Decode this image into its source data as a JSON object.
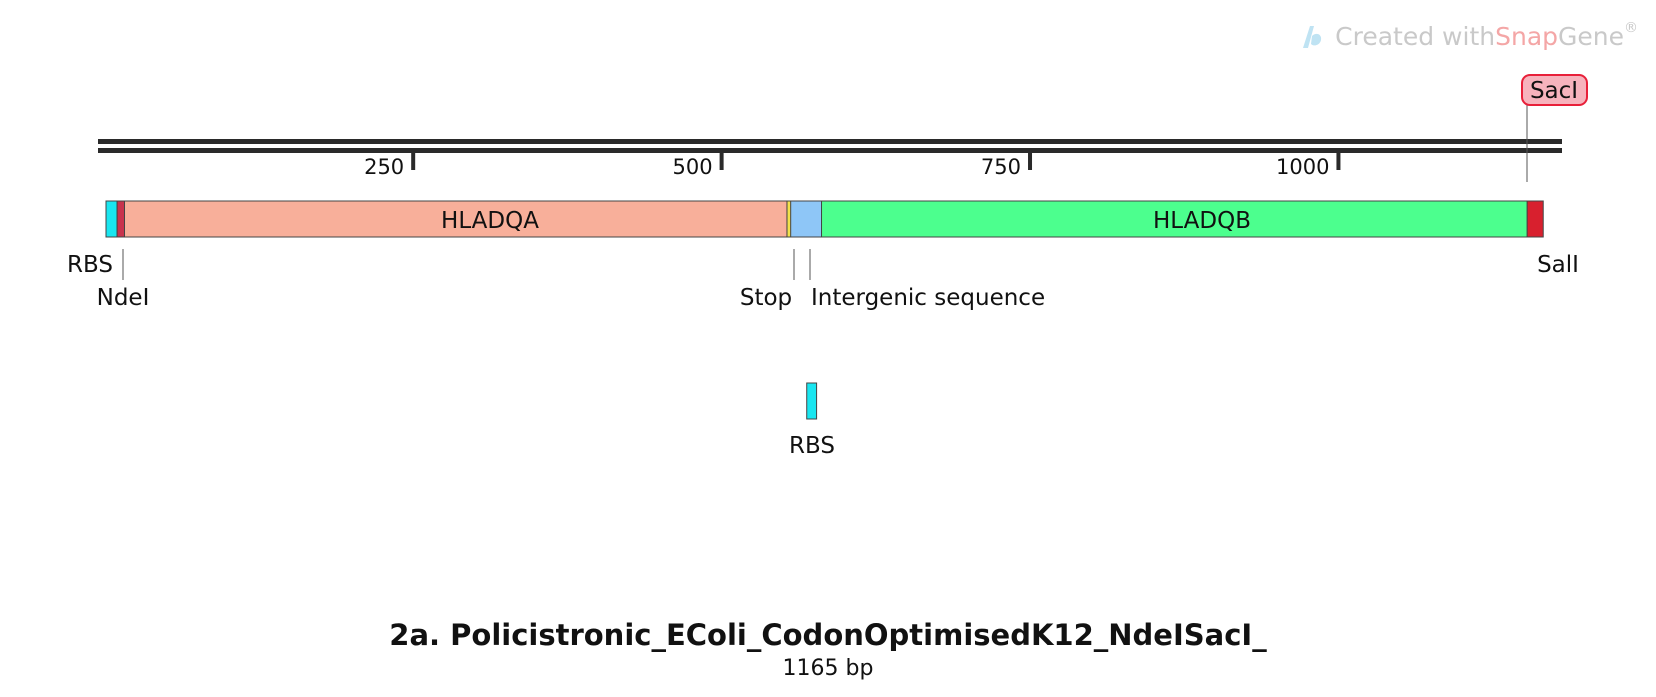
{
  "watermark": {
    "prefix": "Created with ",
    "brand_snap": "Snap",
    "brand_gene": "Gene",
    "reg": "®",
    "icon": "snapgene-logo-icon"
  },
  "map": {
    "title": "2a. Policistronic_EColi_CodonOptimisedK12_NdeISacI_",
    "length_label": "1165 bp",
    "length_bp": 1165,
    "ruler_ticks": [
      250,
      500,
      750,
      1000
    ],
    "features": [
      {
        "name": "RBS",
        "label": "RBS",
        "start": 1,
        "end": 9,
        "color": "#19e6f0",
        "track": "main"
      },
      {
        "name": "NdeI-site",
        "label": "",
        "start": 10,
        "end": 15,
        "color": "#c8334d",
        "track": "main"
      },
      {
        "name": "HLADQA",
        "label": "HLADQA",
        "start": 16,
        "end": 552,
        "color": "#f8af9a",
        "track": "main"
      },
      {
        "name": "Stop",
        "label": "",
        "start": 553,
        "end": 555,
        "color": "#f2e14b",
        "track": "main"
      },
      {
        "name": "Intergenic sequence",
        "label": "",
        "start": 556,
        "end": 580,
        "color": "#8ec6f7",
        "track": "main"
      },
      {
        "name": "HLADQB",
        "label": "HLADQB",
        "start": 581,
        "end": 1152,
        "color": "#4cff8e",
        "track": "main"
      },
      {
        "name": "SalI-site",
        "label": "",
        "start": 1153,
        "end": 1165,
        "color": "#d8202e",
        "track": "main"
      },
      {
        "name": "RBS-2",
        "label": "RBS",
        "start": 569,
        "end": 576,
        "color": "#19e6f0",
        "track": "lower"
      }
    ],
    "site_labels": {
      "ndei": "NdeI",
      "stop": "Stop",
      "intergenic": "Intergenic sequence",
      "sali": "SalI",
      "saci": "SacI"
    }
  }
}
